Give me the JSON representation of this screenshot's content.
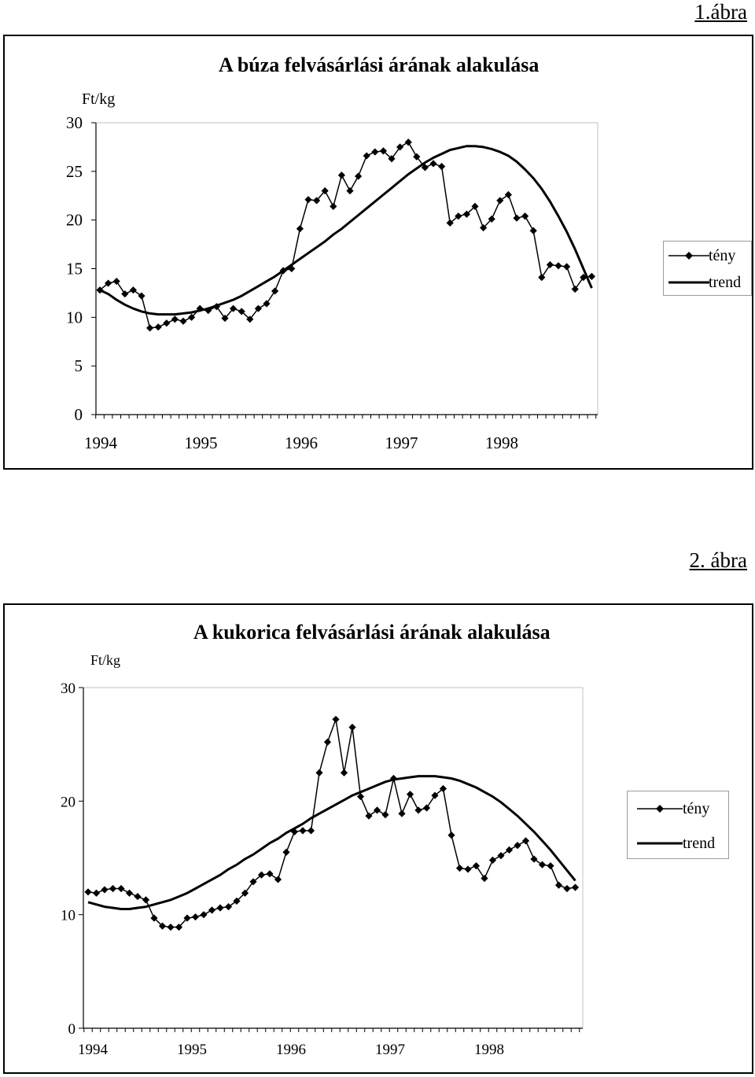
{
  "figure1": {
    "label": "1.ábra",
    "unit": "Ft/kg",
    "legend": {
      "teny": "tény",
      "trend": "trend"
    },
    "chart_data": {
      "type": "line",
      "title": "A búza felvásárlási árának alakulása",
      "ylabel": "Ft/kg",
      "xlabel": "",
      "ylim": [
        0,
        30
      ],
      "yticks": [
        0,
        5,
        10,
        15,
        20,
        25,
        30
      ],
      "x_tick_labels": [
        "1994",
        "1995",
        "1996",
        "1997",
        "1998"
      ],
      "x_period": "monthly",
      "grid": false,
      "legend_position": "right",
      "series": [
        {
          "name": "tény",
          "marker": "diamond",
          "values": [
            12.8,
            13.5,
            13.7,
            12.4,
            12.8,
            12.2,
            8.9,
            9.0,
            9.4,
            9.8,
            9.6,
            10.0,
            10.9,
            10.7,
            11.1,
            9.9,
            10.9,
            10.6,
            9.8,
            10.9,
            11.4,
            12.7,
            14.8,
            15.0,
            19.1,
            22.1,
            22.0,
            23.0,
            21.4,
            24.6,
            23.0,
            24.5,
            26.6,
            27.0,
            27.1,
            26.3,
            27.5,
            28.0,
            26.5,
            25.4,
            25.8,
            25.5,
            19.7,
            20.4,
            20.6,
            21.4,
            19.2,
            20.1,
            22.0,
            22.6,
            20.2,
            20.4,
            18.9,
            14.1,
            15.4,
            15.3,
            15.2,
            12.9,
            14.1,
            14.2
          ]
        },
        {
          "name": "trend",
          "marker": "none",
          "values": [
            12.8,
            12.4,
            11.8,
            11.3,
            10.9,
            10.6,
            10.4,
            10.3,
            10.3,
            10.3,
            10.4,
            10.5,
            10.7,
            10.9,
            11.2,
            11.5,
            11.8,
            12.2,
            12.7,
            13.2,
            13.7,
            14.2,
            14.8,
            15.4,
            16.0,
            16.6,
            17.2,
            17.8,
            18.5,
            19.1,
            19.8,
            20.5,
            21.2,
            21.9,
            22.6,
            23.3,
            24.0,
            24.7,
            25.3,
            25.9,
            26.4,
            26.8,
            27.2,
            27.4,
            27.6,
            27.6,
            27.5,
            27.3,
            27.0,
            26.6,
            26.0,
            25.2,
            24.3,
            23.2,
            21.9,
            20.4,
            18.8,
            17.0,
            15.0,
            13.0
          ]
        }
      ]
    }
  },
  "figure2": {
    "label": "2. ábra",
    "unit": "Ft/kg",
    "legend": {
      "teny": "tény",
      "trend": "trend"
    },
    "chart_data": {
      "type": "line",
      "title": "A kukorica felvásárlási árának alakulása",
      "ylabel": "Ft/kg",
      "xlabel": "",
      "ylim": [
        0,
        30
      ],
      "yticks": [
        0,
        10,
        20,
        30
      ],
      "x_tick_labels": [
        "1994",
        "1995",
        "1996",
        "1997",
        "1998"
      ],
      "x_period": "monthly",
      "grid": false,
      "legend_position": "right",
      "series": [
        {
          "name": "tény",
          "marker": "diamond",
          "values": [
            12.0,
            11.9,
            12.2,
            12.3,
            12.3,
            11.9,
            11.6,
            11.3,
            9.7,
            9.0,
            8.9,
            8.9,
            9.7,
            9.8,
            10.0,
            10.4,
            10.6,
            10.7,
            11.2,
            11.9,
            12.9,
            13.5,
            13.6,
            13.1,
            15.5,
            17.3,
            17.4,
            17.4,
            22.5,
            25.2,
            27.2,
            22.5,
            26.5,
            20.4,
            18.7,
            19.2,
            18.8,
            22.0,
            18.9,
            20.6,
            19.2,
            19.4,
            20.5,
            21.1,
            17.0,
            14.1,
            14.0,
            14.3,
            13.2,
            14.8,
            15.2,
            15.7,
            16.1,
            16.5,
            14.9,
            14.4,
            14.3,
            12.6,
            12.3,
            12.4
          ]
        },
        {
          "name": "trend",
          "marker": "none",
          "values": [
            11.1,
            10.9,
            10.7,
            10.6,
            10.5,
            10.5,
            10.6,
            10.7,
            10.9,
            11.1,
            11.3,
            11.6,
            11.9,
            12.3,
            12.7,
            13.1,
            13.5,
            14.0,
            14.4,
            14.9,
            15.3,
            15.8,
            16.3,
            16.7,
            17.2,
            17.6,
            18.0,
            18.5,
            18.9,
            19.3,
            19.7,
            20.1,
            20.5,
            20.8,
            21.1,
            21.4,
            21.7,
            21.9,
            22.0,
            22.1,
            22.2,
            22.2,
            22.2,
            22.1,
            22.0,
            21.8,
            21.5,
            21.2,
            20.8,
            20.4,
            19.9,
            19.3,
            18.7,
            18.0,
            17.3,
            16.5,
            15.7,
            14.8,
            13.9,
            13.0
          ]
        }
      ]
    }
  }
}
